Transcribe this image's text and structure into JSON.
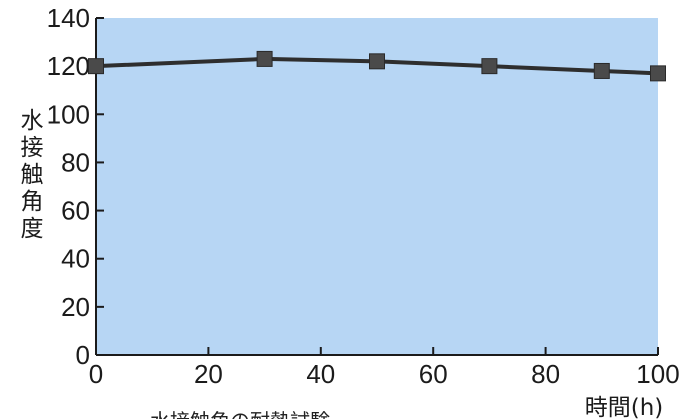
{
  "chart_data": {
    "type": "line",
    "title": "",
    "ylabel": "水接触角度",
    "xlabel": "時間(h)",
    "caption": "水接触角の耐熱試験",
    "xlim": [
      0,
      100
    ],
    "ylim": [
      0,
      140
    ],
    "x_ticks": [
      0,
      20,
      40,
      60,
      80,
      100
    ],
    "y_ticks": [
      0,
      20,
      40,
      60,
      80,
      100,
      120,
      140
    ],
    "grid": false,
    "series": [
      {
        "x": [
          0,
          30,
          50,
          70,
          90,
          100
        ],
        "values": [
          120,
          123,
          122,
          120,
          118,
          117
        ]
      }
    ]
  },
  "colors": {
    "plot_background": "#b7d6f4",
    "line": "#2e2e2e",
    "marker": "#4a4a4a",
    "axis": "#1b1b1b"
  }
}
